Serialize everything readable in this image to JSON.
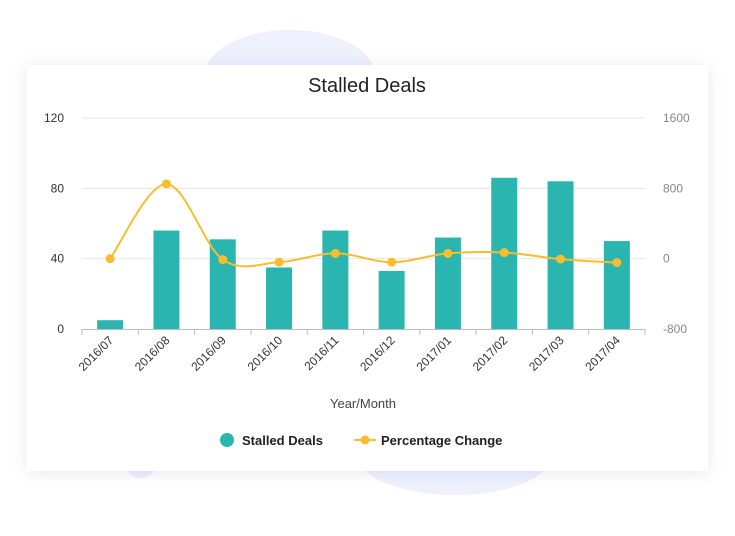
{
  "chart_data": {
    "type": "bar+line",
    "title": "Stalled Deals",
    "xlabel": "Year/Month",
    "categories": [
      "2016/07",
      "2016/08",
      "2016/09",
      "2016/10",
      "2016/11",
      "2016/12",
      "2017/01",
      "2017/02",
      "2017/03",
      "2017/04"
    ],
    "series": [
      {
        "name": "Stalled Deals",
        "type": "bar",
        "axis": "left",
        "color": "#2bb5b0",
        "values": [
          5,
          56,
          51,
          35,
          56,
          33,
          52,
          86,
          84,
          50
        ]
      },
      {
        "name": "Percentage Change",
        "type": "line",
        "axis": "right",
        "color": "#f7bd2c",
        "values": [
          0,
          850,
          -10,
          -40,
          60,
          -40,
          60,
          70,
          -5,
          -45
        ]
      }
    ],
    "y_left": {
      "ticks": [
        "0",
        "40",
        "80",
        "120"
      ],
      "ylim": [
        0,
        120
      ]
    },
    "y_right": {
      "ticks": [
        "-800",
        "0",
        "800",
        "1600"
      ],
      "ylim": [
        -800,
        1600
      ]
    },
    "grid": "horizontal",
    "legend": "bottom-center"
  }
}
